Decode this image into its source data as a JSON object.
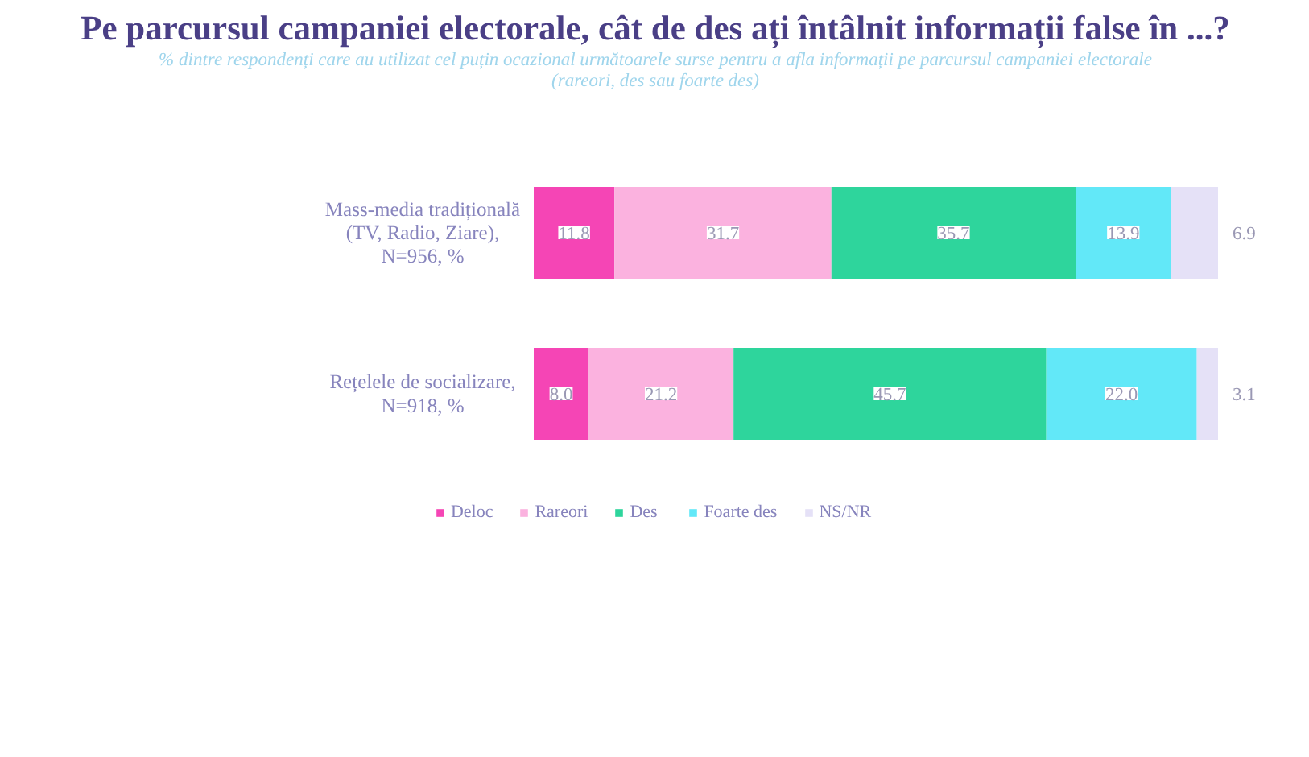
{
  "chart_data": {
    "type": "bar",
    "orientation": "horizontal",
    "stacked": true,
    "title": "Pe parcursul campaniei electorale, cât de des ați întâlnit informații false în ...?",
    "subtitle": "% dintre respondenți care au utilizat cel puțin ocazional următoarele surse pentru a afla informații pe parcursul campaniei electorale (rareori, des sau foarte des)",
    "categories": [
      "Mass-media tradițională (TV, Radio, Ziare), N=956, %",
      "Rețelele de socializare, N=918, %"
    ],
    "series": [
      {
        "name": "Deloc",
        "color": "#f545b5",
        "values": [
          11.8,
          8.0
        ],
        "value_labels": [
          "11.8",
          "8.0"
        ]
      },
      {
        "name": "Rareori",
        "color": "#fbb2df",
        "values": [
          31.7,
          21.2
        ],
        "value_labels": [
          "31.7",
          "21.2"
        ]
      },
      {
        "name": "Des",
        "color": "#2ed59c",
        "values": [
          35.7,
          45.7
        ],
        "value_labels": [
          "35.7",
          "45.7"
        ]
      },
      {
        "name": "Foarte des",
        "color": "#62e8f8",
        "values": [
          13.9,
          22.0
        ],
        "value_labels": [
          "13.9",
          "22.0"
        ]
      },
      {
        "name": "NS/NR",
        "color": "#e5e1f7",
        "values": [
          6.9,
          3.1
        ],
        "value_labels": [
          "6.9",
          "3.1"
        ]
      }
    ],
    "tick_labels": "y",
    "legend": "bottom"
  }
}
